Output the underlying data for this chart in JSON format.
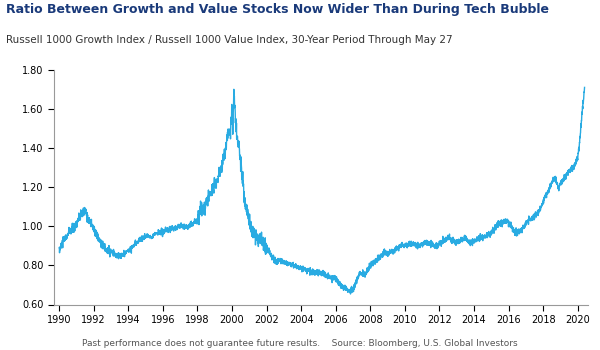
{
  "title": "Ratio Between Growth and Value Stocks Now Wider Than During Tech Bubble",
  "subtitle": "Russell 1000 Growth Index / Russell 1000 Value Index, 30-Year Period Through May 27",
  "footnote": "Past performance does not guarantee future results.    Source: Bloomberg, U.S. Global Investors",
  "title_color": "#1a3a7a",
  "line_color": "#29ABE2",
  "background_color": "#FFFFFF",
  "ylim": [
    0.6,
    1.8
  ],
  "yticks": [
    0.6,
    0.8,
    1.0,
    1.2,
    1.4,
    1.6,
    1.8
  ],
  "xticks": [
    1990,
    1992,
    1994,
    1996,
    1998,
    2000,
    2002,
    2004,
    2006,
    2008,
    2010,
    2012,
    2014,
    2016,
    2018,
    2020
  ],
  "years_start": 1989.7,
  "years_end": 2020.6
}
